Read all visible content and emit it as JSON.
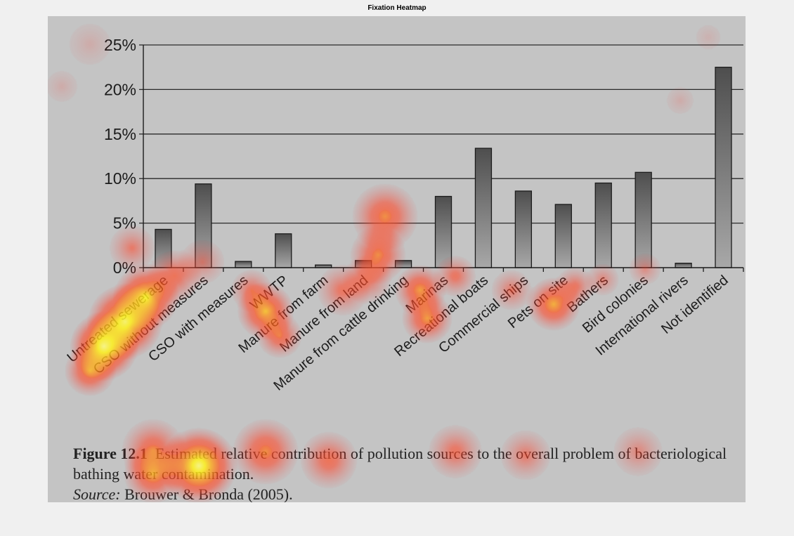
{
  "window": {
    "title": "Fixation Heatmap"
  },
  "caption": {
    "figure_label": "Figure 12.1",
    "figure_text": "Estimated relative contribution of pollution sources to the overall problem of bacteriological bathing water contamination.",
    "source_label": "Source:",
    "source_text": "Brouwer & Bronda (2005)."
  },
  "chart_data": {
    "type": "bar",
    "categories": [
      "Untreated sewerage",
      "CSO without measures",
      "CSO with measures",
      "WWTP",
      "Manure from farm",
      "Manure from land",
      "Manure from cattle drinking",
      "Marinas",
      "Recreational boats",
      "Commercial ships",
      "Pets on site",
      "Bathers",
      "Bird colonies",
      "International rivers",
      "Not identified"
    ],
    "values": [
      4.3,
      9.4,
      0.7,
      3.8,
      0.3,
      0.8,
      0.8,
      8.0,
      13.4,
      8.6,
      7.1,
      9.5,
      10.7,
      0.5,
      22.5
    ],
    "ylim": [
      0,
      25
    ],
    "yticks": [
      "0%",
      "5%",
      "10%",
      "15%",
      "20%",
      "25%"
    ],
    "grid": true,
    "bar_color": "#555555"
  },
  "heatmap_overlay": {
    "colors": [
      "#ff2a2a",
      "#ffd81a",
      "#ffff99"
    ]
  }
}
